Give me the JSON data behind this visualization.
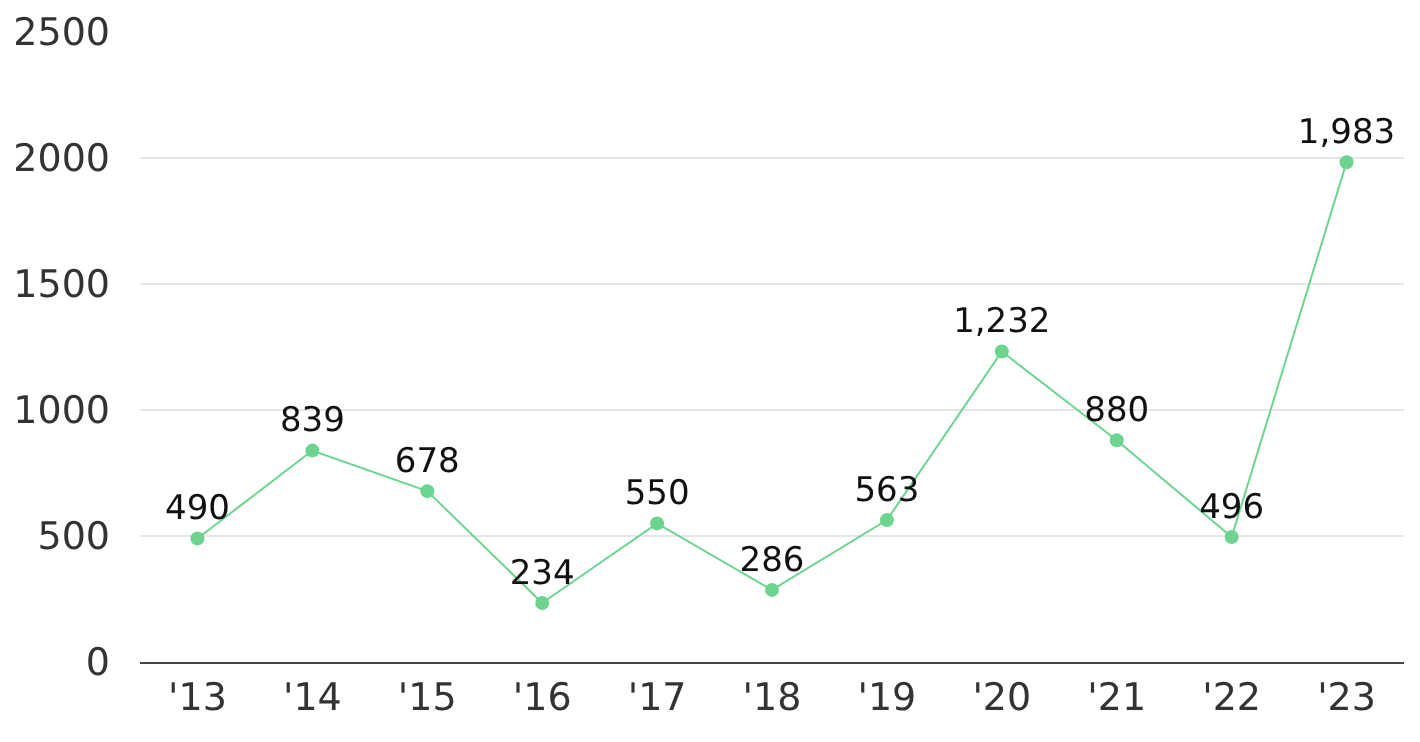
{
  "chart_data": {
    "type": "line",
    "categories": [
      "'13",
      "'14",
      "'15",
      "'16",
      "'17",
      "'18",
      "'19",
      "'20",
      "'21",
      "'22",
      "'23"
    ],
    "series": [
      {
        "color": "#6cd48f",
        "values": [
          490,
          839,
          678,
          234,
          550,
          286,
          563,
          1232,
          880,
          496,
          1983
        ],
        "value_labels": [
          "490",
          "839",
          "678",
          "234",
          "550",
          "286",
          "563",
          "1,232",
          "880",
          "496",
          "1,983"
        ]
      }
    ],
    "ylim": [
      0,
      2500
    ],
    "yticks": [
      0,
      500,
      1000,
      1500,
      2000,
      2500
    ],
    "grid": "y",
    "marker": "circle",
    "line_style": "solid"
  }
}
